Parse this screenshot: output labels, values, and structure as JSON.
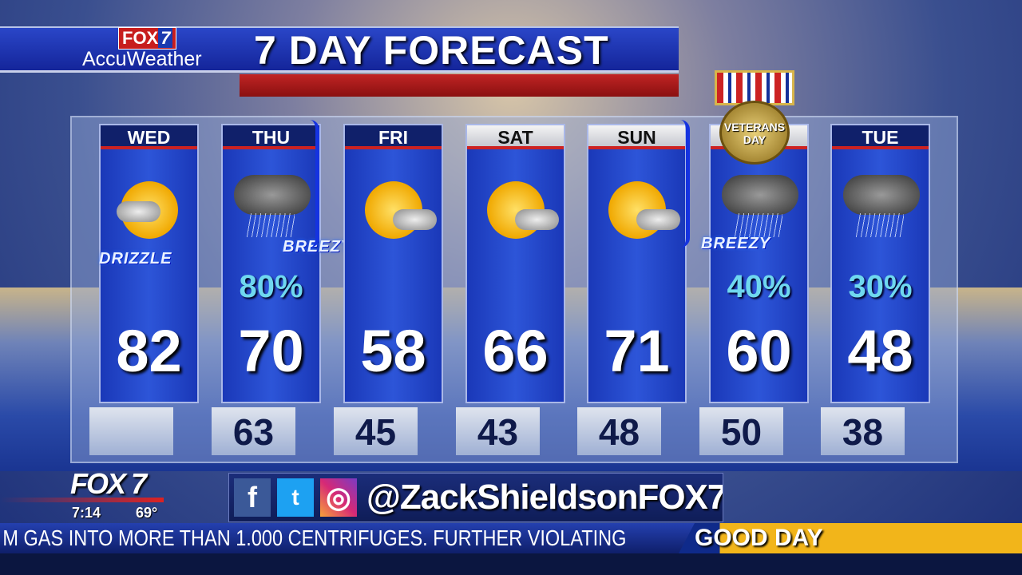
{
  "header": {
    "station_logo": "FOX 7",
    "partner": "AccuWeather",
    "title": "7 DAY FORECAST"
  },
  "days": [
    {
      "name": "WED",
      "high": "82",
      "low": "",
      "precip": "",
      "condition_label": "DRIZZLE",
      "icon": "sun-cloud-icon"
    },
    {
      "name": "THU",
      "high": "70",
      "low": "63",
      "precip": "80%",
      "condition_label": "BREEZY",
      "icon": "rain-cloud-icon"
    },
    {
      "name": "FRI",
      "high": "58",
      "low": "45",
      "precip": "",
      "condition_label": "",
      "icon": "sun-cloud-icon"
    },
    {
      "name": "SAT",
      "high": "66",
      "low": "43",
      "precip": "",
      "condition_label": "",
      "icon": "sun-cloud-icon"
    },
    {
      "name": "SUN",
      "high": "71",
      "low": "48",
      "precip": "",
      "condition_label": "",
      "icon": "sun-cloud-icon"
    },
    {
      "name": "",
      "high": "60",
      "low": "50",
      "precip": "40%",
      "condition_label": "BREEZY",
      "icon": "rain-cloud-icon",
      "badge": "VETERANS DAY"
    },
    {
      "name": "TUE",
      "high": "48",
      "low": "38",
      "precip": "30%",
      "condition_label": "",
      "icon": "rain-cloud-icon"
    }
  ],
  "bug": {
    "logo": "FOX 7",
    "time": "7:14",
    "temperature": "69°"
  },
  "social": {
    "facebook": "f",
    "twitter": "t",
    "instagram": "◎",
    "handle": "@ZackShieldsonFOX7"
  },
  "ticker": {
    "text": "M GAS INTO MORE THAN 1.000 CENTRIFUGES. FURTHER VIOLATING",
    "show": "GOOD DAY"
  },
  "colors": {
    "panel": "#1a38b8",
    "accent_red": "#c22",
    "precip": "#6fd8ef",
    "show_gold": "#f2b51a"
  }
}
